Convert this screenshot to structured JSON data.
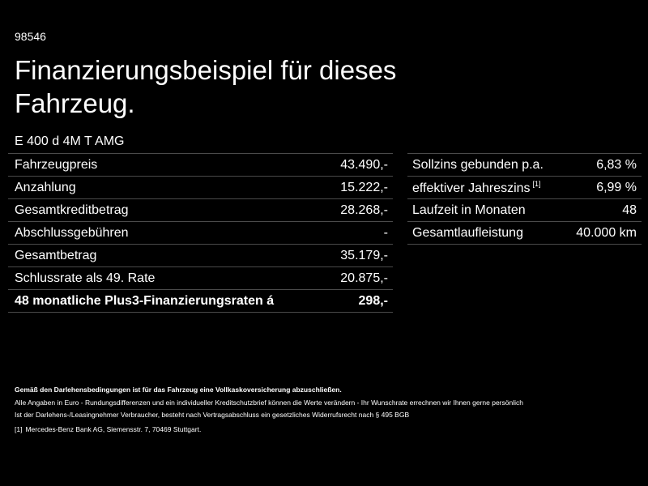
{
  "code": "98546",
  "title": "Finanzierungsbeispiel für dieses Fahrzeug.",
  "model": "E 400 d 4M T AMG",
  "left_table": [
    {
      "label": "Fahrzeugpreis",
      "value": "43.490,-"
    },
    {
      "label": "Anzahlung",
      "value": "15.222,-"
    },
    {
      "label": "Gesamtkreditbetrag",
      "value": "28.268,-"
    },
    {
      "label": "Abschlussgebühren",
      "value": "-"
    },
    {
      "label": "Gesamtbetrag",
      "value": "35.179,-"
    },
    {
      "label": "Schlussrate als 49. Rate",
      "value": "20.875,-"
    },
    {
      "label": "48 monatliche Plus3-Finanzierungsraten á",
      "value": "298,-"
    }
  ],
  "right_table": [
    {
      "label": "Sollzins gebunden p.a.",
      "value": "6,83 %"
    },
    {
      "label": "effektiver Jahreszins",
      "marker": "[1]",
      "value": "6,99 %"
    },
    {
      "label": "Laufzeit in Monaten",
      "value": "48"
    },
    {
      "label": "Gesamtlaufleistung",
      "value": "40.000 km"
    }
  ],
  "fineprint": {
    "bold": "Gemäß den Darlehensbedingungen ist für das Fahrzeug eine Vollkaskoversicherung abzuschließen.",
    "line1": "Alle Angaben in Euro - Rundungsdifferenzen und ein individueller Kreditschutzbrief können die Werte verändern - Ihr Wunschrate errechnen wir Ihnen gerne persönlich",
    "line2": "Ist der Darlehens-/Leasingnehmer Verbraucher, besteht nach Vertragsabschluss ein gesetzliches Widerrufsrecht nach § 495 BGB"
  },
  "footnote": {
    "marker": "[1]",
    "text": "Mercedes-Benz Bank AG, Siemensstr. 7, 70469 Stuttgart."
  },
  "colors": {
    "background": "#000000",
    "text": "#ffffff",
    "divider": "#4a4a4a"
  }
}
